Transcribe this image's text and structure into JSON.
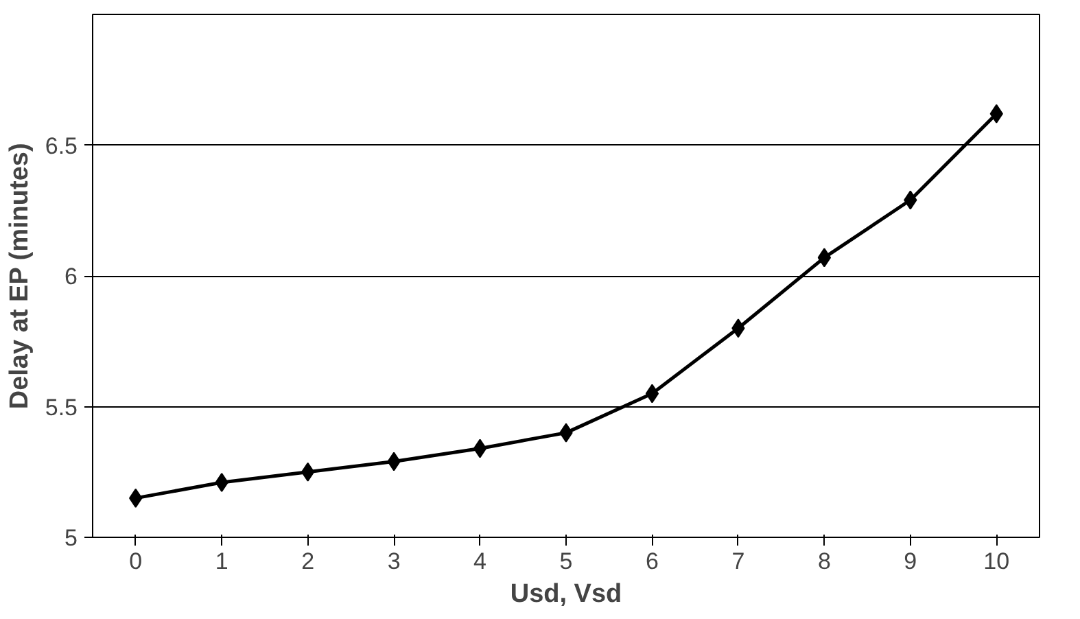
{
  "chart_data": {
    "type": "line",
    "xlabel": "Usd, Vsd",
    "ylabel": "Delay at EP (minutes)",
    "categories": [
      "0",
      "1",
      "2",
      "3",
      "4",
      "5",
      "6",
      "7",
      "8",
      "9",
      "10"
    ],
    "series": [
      {
        "color": "#000000",
        "values": [
          5.15,
          5.21,
          5.25,
          5.29,
          5.34,
          5.4,
          5.55,
          5.8,
          6.07,
          6.29,
          6.62
        ]
      }
    ],
    "ylim": [
      5,
      7
    ],
    "yticks": [
      5,
      5.5,
      6,
      6.5
    ],
    "grid": "y",
    "marker": "diamond",
    "line_style": "solid"
  }
}
